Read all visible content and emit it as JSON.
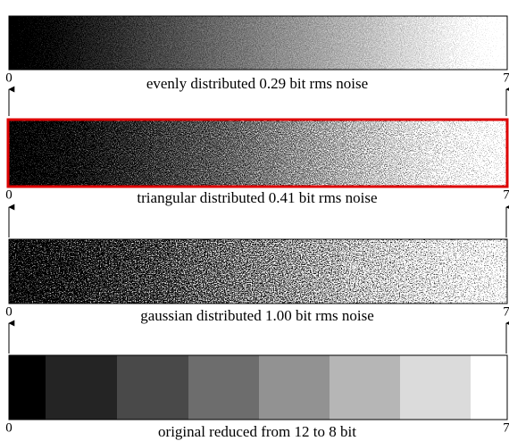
{
  "panels": [
    {
      "caption": "evenly distributed 0.29 bit rms noise",
      "left": "0",
      "right": "7"
    },
    {
      "caption": "triangular distributed 0.41 bit rms noise",
      "left": "0",
      "right": "7"
    },
    {
      "caption": "gaussian distributed 1.00 bit rms noise",
      "left": "0",
      "right": "7"
    },
    {
      "caption": "original reduced from 12 to 8 bit",
      "left": "0",
      "right": "7"
    }
  ]
}
